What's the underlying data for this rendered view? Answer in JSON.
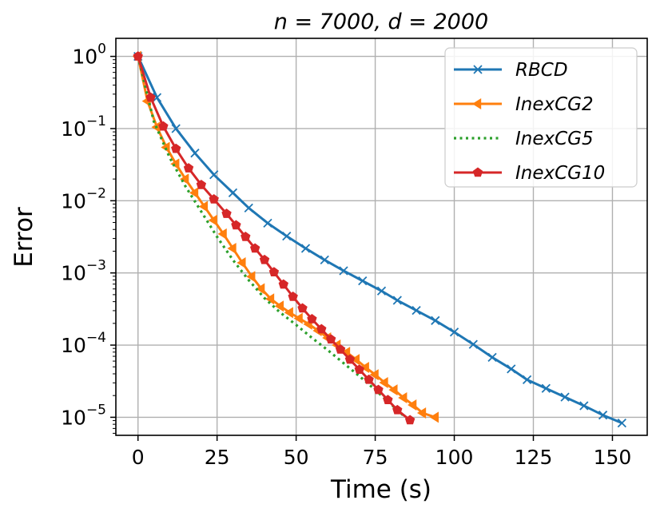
{
  "chart_data": {
    "type": "line",
    "title": "n = 7000, d = 2000",
    "xlabel": "Time (s)",
    "ylabel": "Error",
    "xlim": [
      -7,
      161
    ],
    "ylim_log10": [
      -5.25,
      0.25
    ],
    "yscale": "log",
    "grid": true,
    "legend_position": "top-right",
    "x_ticks": [
      {
        "value": 0,
        "label": "0"
      },
      {
        "value": 25,
        "label": "25"
      },
      {
        "value": 50,
        "label": "50"
      },
      {
        "value": 75,
        "label": "75"
      },
      {
        "value": 100,
        "label": "100"
      },
      {
        "value": 125,
        "label": "125"
      },
      {
        "value": 150,
        "label": "150"
      }
    ],
    "y_ticks": [
      {
        "exp": 0,
        "base": "10",
        "sup": "0"
      },
      {
        "exp": -1,
        "base": "10",
        "sup": "−1"
      },
      {
        "exp": -2,
        "base": "10",
        "sup": "−2"
      },
      {
        "exp": -3,
        "base": "10",
        "sup": "−3"
      },
      {
        "exp": -4,
        "base": "10",
        "sup": "−4"
      },
      {
        "exp": -5,
        "base": "10",
        "sup": "−5"
      }
    ],
    "series": [
      {
        "name": "RBCD",
        "color": "#1f77b4",
        "marker": "x",
        "linestyle": "solid",
        "x": [
          0,
          6,
          12,
          18,
          24,
          30,
          35,
          41,
          47,
          53,
          59,
          65,
          71,
          77,
          82,
          88,
          94,
          100,
          106,
          112,
          118,
          123,
          129,
          135,
          141,
          147,
          153
        ],
        "log10_y": [
          0,
          -0.57,
          -1.0,
          -1.34,
          -1.64,
          -1.89,
          -2.1,
          -2.31,
          -2.49,
          -2.66,
          -2.82,
          -2.97,
          -3.11,
          -3.25,
          -3.38,
          -3.52,
          -3.66,
          -3.82,
          -3.99,
          -4.17,
          -4.33,
          -4.48,
          -4.6,
          -4.72,
          -4.84,
          -4.97,
          -5.08
        ]
      },
      {
        "name": "InexCG2",
        "color": "#ff7f0e",
        "marker": "triangle-left",
        "linestyle": "solid",
        "x": [
          0,
          3,
          6,
          9,
          12,
          15,
          18,
          21,
          24,
          27,
          30,
          33,
          36,
          39,
          42,
          45,
          48,
          51,
          54,
          57,
          60,
          63,
          66,
          69,
          72,
          75,
          78,
          81,
          84,
          87,
          90,
          94
        ],
        "log10_y": [
          0,
          -0.62,
          -0.98,
          -1.26,
          -1.49,
          -1.7,
          -1.89,
          -2.08,
          -2.27,
          -2.46,
          -2.66,
          -2.86,
          -3.05,
          -3.22,
          -3.36,
          -3.46,
          -3.55,
          -3.63,
          -3.71,
          -3.8,
          -3.9,
          -4.0,
          -4.1,
          -4.2,
          -4.31,
          -4.41,
          -4.52,
          -4.62,
          -4.73,
          -4.83,
          -4.94,
          -5.0
        ]
      },
      {
        "name": "InexCG5",
        "color": "#2ca02c",
        "marker": "none",
        "linestyle": "dotted",
        "x": [
          0,
          5,
          10,
          15,
          20,
          25,
          30,
          35,
          40,
          45,
          50,
          55,
          60,
          65,
          70,
          75,
          80,
          84
        ],
        "log10_y": [
          0,
          -0.9,
          -1.4,
          -1.8,
          -2.15,
          -2.5,
          -2.82,
          -3.1,
          -3.35,
          -3.55,
          -3.72,
          -3.9,
          -4.07,
          -4.25,
          -4.43,
          -4.62,
          -4.82,
          -4.98
        ]
      },
      {
        "name": "InexCG10",
        "color": "#d62728",
        "marker": "pentagon",
        "linestyle": "solid",
        "x": [
          0,
          4,
          8,
          12,
          16,
          20,
          24,
          28,
          31,
          34,
          37,
          40,
          43,
          46,
          49,
          52,
          55,
          58,
          61,
          64,
          67,
          70,
          73,
          76,
          79,
          82,
          86
        ],
        "log10_y": [
          0,
          -0.57,
          -0.97,
          -1.28,
          -1.55,
          -1.78,
          -1.98,
          -2.18,
          -2.34,
          -2.5,
          -2.66,
          -2.82,
          -2.99,
          -3.16,
          -3.33,
          -3.49,
          -3.64,
          -3.78,
          -3.92,
          -4.06,
          -4.2,
          -4.34,
          -4.48,
          -4.62,
          -4.76,
          -4.9,
          -5.04
        ]
      }
    ]
  }
}
